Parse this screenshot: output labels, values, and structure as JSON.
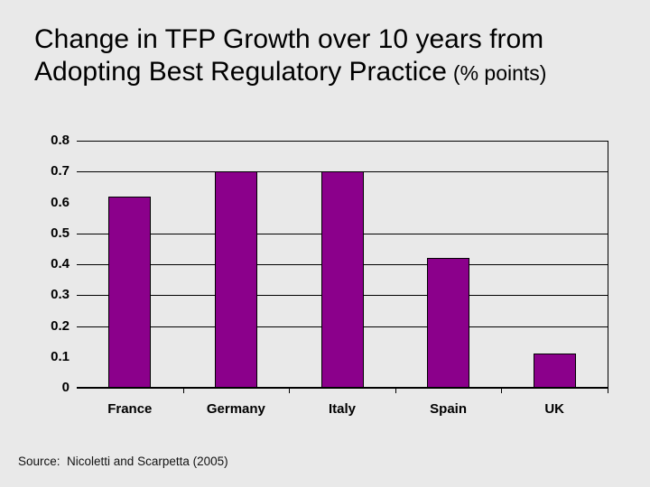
{
  "slide": {
    "background": "#E9E9E9",
    "title_line1": "Change in TFP Growth over 10 years from",
    "title_line2": "Adopting Best Regulatory Practice",
    "title_suffix": "(% points)",
    "source": "Source:  Nicoletti and Scarpetta (2005)"
  },
  "chart_data": {
    "type": "bar",
    "categories": [
      "France",
      "Germany",
      "Italy",
      "Spain",
      "UK"
    ],
    "values": [
      0.62,
      0.7,
      0.7,
      0.42,
      0.11
    ],
    "title": "",
    "xlabel": "",
    "ylabel": "",
    "ylim": [
      0,
      0.8
    ],
    "ytick_step": 0.1,
    "ytick_labels": [
      "0.8",
      "0.7",
      "0.6",
      "0.5",
      "0.4",
      "0.3",
      "0.2",
      "0.1",
      "0"
    ],
    "gridline_values": [
      0.8,
      0.7,
      0.5,
      0.4,
      0.3,
      0.2
    ],
    "grid": "horizontal-partial",
    "legend": "none",
    "bar_color": "#8B008B",
    "bar_border_color": "#000000",
    "axis_color": "#000000",
    "text_color": "#000000"
  }
}
